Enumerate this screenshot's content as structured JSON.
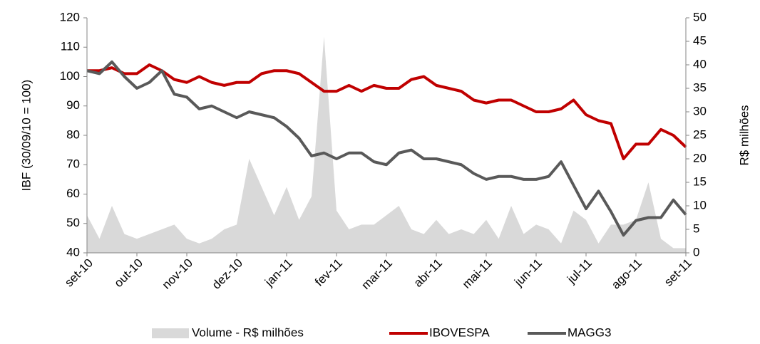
{
  "chart_data": {
    "type": "line",
    "categories": [
      "set-10",
      null,
      null,
      null,
      "out-10",
      null,
      null,
      null,
      "nov-10",
      null,
      null,
      null,
      "dez-10",
      null,
      null,
      null,
      "jan-11",
      null,
      null,
      null,
      "fev-11",
      null,
      null,
      null,
      "mar-11",
      null,
      null,
      null,
      "abr-11",
      null,
      null,
      null,
      "mai-11",
      null,
      null,
      null,
      "jun-11",
      null,
      null,
      null,
      "jul-11",
      null,
      null,
      null,
      "ago-11",
      null,
      null,
      null,
      "set-11"
    ],
    "ylabel": "IBF (30/09/10 = 100)",
    "y2label": "R$ milhões",
    "ylim": [
      40,
      120
    ],
    "yticks": [
      40,
      50,
      60,
      70,
      80,
      90,
      100,
      110,
      120
    ],
    "y2lim": [
      0,
      50
    ],
    "y2ticks": [
      0,
      5,
      10,
      15,
      20,
      25,
      30,
      35,
      40,
      45,
      50
    ],
    "series": [
      {
        "name": "Volume - R$ milhões",
        "color": "#d9d9d9",
        "axis": "y2",
        "kind": "area",
        "values": [
          8,
          3,
          10,
          4,
          3,
          4,
          5,
          6,
          3,
          2,
          3,
          5,
          6,
          20,
          14,
          8,
          14,
          7,
          12,
          46,
          9,
          5,
          6,
          6,
          8,
          10,
          5,
          4,
          7,
          4,
          5,
          4,
          7,
          3,
          10,
          4,
          6,
          5,
          2,
          9,
          7,
          2,
          6,
          6,
          7,
          15,
          3,
          1,
          1
        ]
      },
      {
        "name": "IBOVESPA",
        "color": "#c00000",
        "values": [
          102,
          102,
          103,
          101,
          101,
          104,
          102,
          99,
          98,
          100,
          98,
          97,
          98,
          98,
          101,
          102,
          102,
          101,
          98,
          95,
          95,
          97,
          95,
          97,
          96,
          96,
          99,
          100,
          97,
          96,
          95,
          92,
          91,
          92,
          92,
          90,
          88,
          88,
          89,
          92,
          87,
          85,
          84,
          72,
          77,
          77,
          82,
          80,
          76
        ]
      },
      {
        "name": "MAGG3",
        "color": "#595959",
        "values": [
          102,
          101,
          105,
          100,
          96,
          98,
          102,
          94,
          93,
          89,
          90,
          88,
          86,
          88,
          87,
          86,
          83,
          79,
          73,
          74,
          72,
          74,
          74,
          71,
          70,
          74,
          75,
          72,
          72,
          71,
          70,
          67,
          65,
          66,
          66,
          65,
          65,
          66,
          71,
          63,
          55,
          61,
          54,
          46,
          51,
          52,
          52,
          58,
          53
        ]
      }
    ]
  }
}
